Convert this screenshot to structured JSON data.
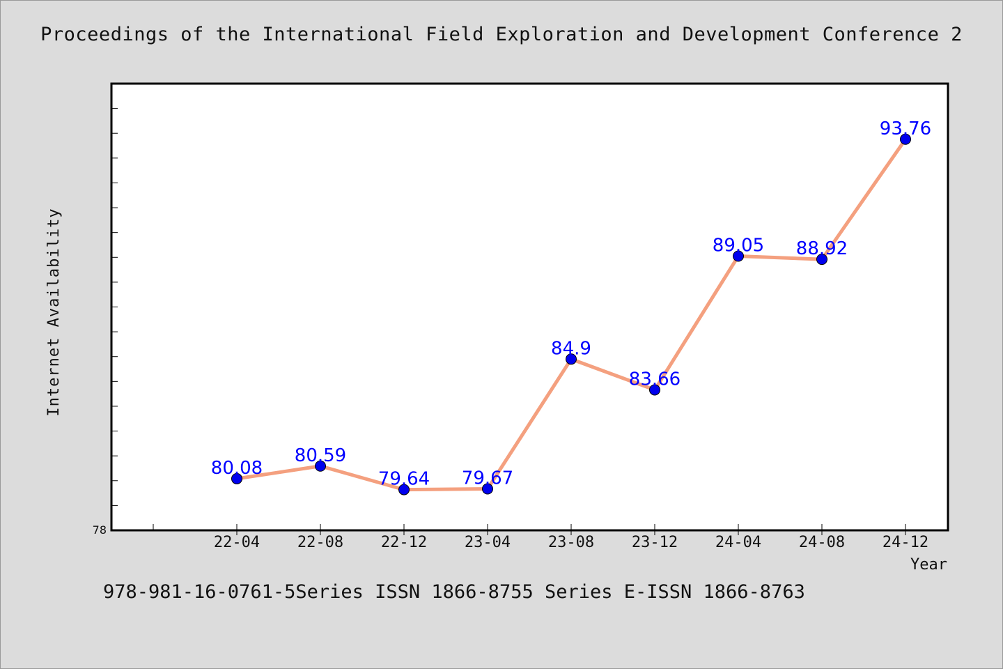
{
  "page": {
    "title": "Proceedings of the International Field Exploration and Development Conference 2",
    "footer": "978-981-16-0761-5Series ISSN 1866-8755 Series E-ISSN 1866-8763"
  },
  "chart_data": {
    "type": "line",
    "categories": [
      "22-04",
      "22-08",
      "22-12",
      "23-04",
      "23-08",
      "23-12",
      "24-04",
      "24-08",
      "24-12"
    ],
    "values": [
      80.08,
      80.59,
      79.64,
      79.67,
      84.9,
      83.66,
      89.05,
      88.92,
      93.76
    ],
    "data_labels": [
      "80.08",
      "80.59",
      "79.64",
      "79.67",
      "84.9",
      "83.66",
      "89.05",
      "88.92",
      "93.76"
    ],
    "xlabel": "Year",
    "ylabel": "Internet Availability",
    "ylim": [
      78,
      96
    ],
    "y_tick_labels": [
      "78"
    ],
    "grid": false,
    "line_color": "#f4a07f",
    "marker_color": "#0000ee",
    "label_color": "#0000ff",
    "background_color": "#dcdcdc",
    "plot_background_color": "#ffffff"
  }
}
